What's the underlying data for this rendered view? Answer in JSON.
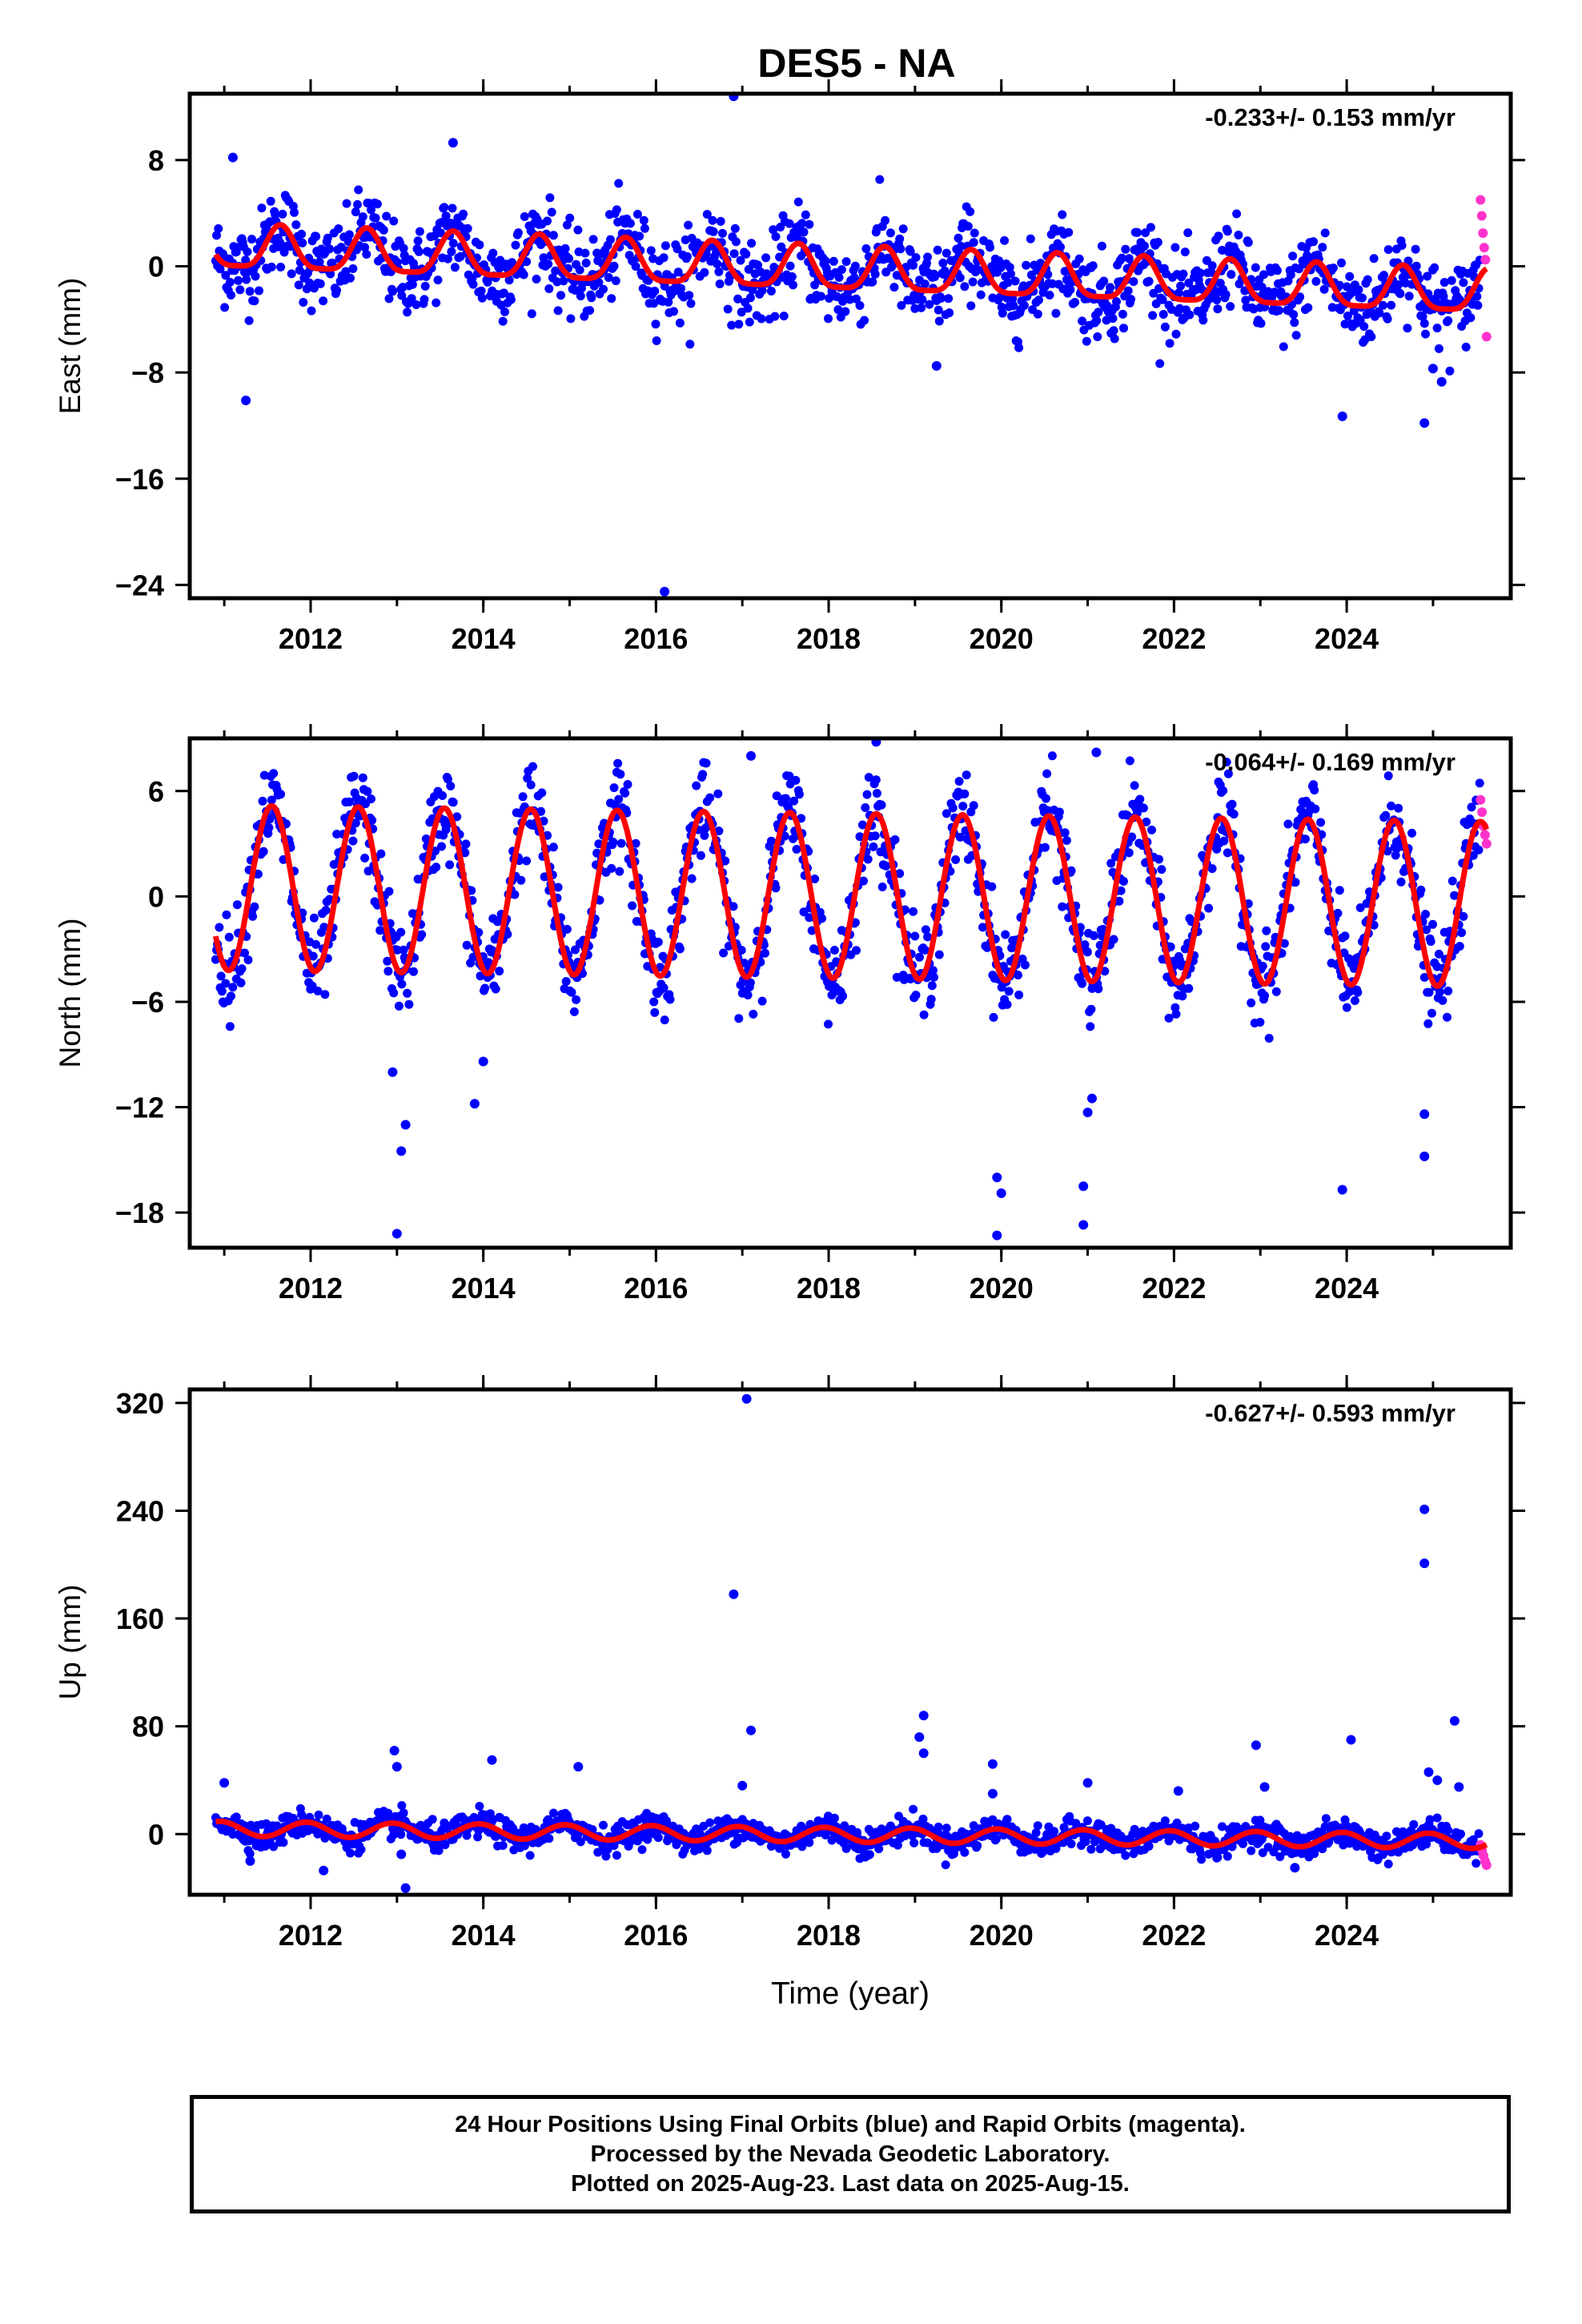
{
  "title": "DES5 - NA",
  "footer": {
    "lines": [
      "24 Hour Positions Using Final Orbits (blue) and Rapid Orbits (magenta).",
      "Processed by the Nevada Geodetic Laboratory.",
      "Plotted on 2025-Aug-23. Last data on 2025-Aug-15."
    ]
  },
  "colors": {
    "final_orbits": "#0000ff",
    "rapid_orbits": "#ff33cc",
    "model": "#ff0000",
    "frame": "#000000"
  },
  "chart_data": [
    {
      "type": "scatter",
      "name": "east",
      "title": "",
      "xlabel": "",
      "ylabel": "East (mm)",
      "xlim": [
        2010.6,
        2025.9
      ],
      "ylim": [
        -25,
        13
      ],
      "xticks": [
        2012,
        2014,
        2016,
        2018,
        2020,
        2022,
        2024
      ],
      "yticks": [
        8,
        0,
        -8,
        -16,
        -24
      ],
      "rate_label": "-0.233+/- 0.153 mm/yr",
      "data_start": 2010.9,
      "data_end": 2025.62,
      "model": {
        "offset": 1.3,
        "trend": -0.233,
        "amplitude": 1.6,
        "phase_peak": 0.65,
        "semi_annual": 0.4
      },
      "scatter_sigma": 1.6,
      "outliers": [
        {
          "x": 2011.25,
          "y": -10.1
        },
        {
          "x": 2011.1,
          "y": 8.2
        },
        {
          "x": 2013.65,
          "y": 9.3
        },
        {
          "x": 2016.1,
          "y": -24.5
        },
        {
          "x": 2016.9,
          "y": 12.8
        },
        {
          "x": 2019.25,
          "y": -7.5
        },
        {
          "x": 2023.95,
          "y": -11.3
        },
        {
          "x": 2024.9,
          "y": -11.8
        },
        {
          "x": 2025.1,
          "y": -8.7
        },
        {
          "x": 2025.0,
          "y": -7.7
        }
      ],
      "rapid": {
        "x_start": 2025.55,
        "x_end": 2025.62,
        "values": [
          5.0,
          3.8,
          2.5,
          1.4,
          0.5,
          -5.3
        ]
      }
    },
    {
      "type": "scatter",
      "name": "north",
      "title": "",
      "xlabel": "",
      "ylabel": "North (mm)",
      "xlim": [
        2010.6,
        2025.9
      ],
      "ylim": [
        -20,
        9
      ],
      "xticks": [
        2012,
        2014,
        2016,
        2018,
        2020,
        2022,
        2024
      ],
      "yticks": [
        6,
        0,
        -6,
        -12,
        -18
      ],
      "rate_label": "-0.064+/- 0.169 mm/yr",
      "data_start": 2010.9,
      "data_end": 2025.62,
      "model": {
        "offset": 0.5,
        "trend": -0.064,
        "amplitude": 4.7,
        "phase_peak": 0.55,
        "semi_annual": 0.0
      },
      "scatter_sigma": 1.3,
      "outliers": [
        {
          "x": 2012.95,
          "y": -10.0
        },
        {
          "x": 2013.05,
          "y": -14.5
        },
        {
          "x": 2013.1,
          "y": -13.0
        },
        {
          "x": 2013.0,
          "y": -19.2
        },
        {
          "x": 2013.9,
          "y": -11.8
        },
        {
          "x": 2014.0,
          "y": -9.4
        },
        {
          "x": 2017.1,
          "y": 8.0
        },
        {
          "x": 2018.55,
          "y": 8.8
        },
        {
          "x": 2019.95,
          "y": -16.0
        },
        {
          "x": 2019.95,
          "y": -19.3
        },
        {
          "x": 2020.0,
          "y": -16.9
        },
        {
          "x": 2020.95,
          "y": -16.5
        },
        {
          "x": 2020.95,
          "y": -18.7
        },
        {
          "x": 2021.0,
          "y": -12.3
        },
        {
          "x": 2021.05,
          "y": -11.5
        },
        {
          "x": 2021.1,
          "y": 8.2
        },
        {
          "x": 2023.95,
          "y": -16.7
        },
        {
          "x": 2024.9,
          "y": -14.8
        },
        {
          "x": 2024.9,
          "y": -12.4
        }
      ],
      "rapid": {
        "x_start": 2025.55,
        "x_end": 2025.62,
        "values": [
          5.5,
          4.8,
          4.0,
          3.5,
          3.0
        ]
      }
    },
    {
      "type": "scatter",
      "name": "up",
      "title": "",
      "xlabel": "Time (year)",
      "ylabel": "Up (mm)",
      "xlim": [
        2010.6,
        2025.9
      ],
      "ylim": [
        -45,
        330
      ],
      "xticks": [
        2012,
        2014,
        2016,
        2018,
        2020,
        2022,
        2024
      ],
      "yticks": [
        320,
        240,
        160,
        80,
        0
      ],
      "rate_label": "-0.627+/- 0.593 mm/yr",
      "data_start": 2010.9,
      "data_end": 2025.62,
      "model": {
        "offset": 4.0,
        "trend": -0.627,
        "amplitude": 5.5,
        "phase_peak": 0.95,
        "semi_annual": 0.0
      },
      "scatter_sigma": 5.0,
      "outliers": [
        {
          "x": 2011.0,
          "y": 38
        },
        {
          "x": 2011.3,
          "y": -20
        },
        {
          "x": 2012.15,
          "y": -27
        },
        {
          "x": 2012.97,
          "y": 62
        },
        {
          "x": 2013.0,
          "y": 50
        },
        {
          "x": 2013.05,
          "y": -15
        },
        {
          "x": 2013.1,
          "y": -40
        },
        {
          "x": 2014.1,
          "y": 55
        },
        {
          "x": 2015.1,
          "y": 50
        },
        {
          "x": 2016.9,
          "y": 178
        },
        {
          "x": 2017.05,
          "y": 323
        },
        {
          "x": 2017.1,
          "y": 77
        },
        {
          "x": 2017.0,
          "y": 36
        },
        {
          "x": 2019.1,
          "y": 88
        },
        {
          "x": 2019.05,
          "y": 72
        },
        {
          "x": 2019.1,
          "y": 60
        },
        {
          "x": 2019.9,
          "y": 52
        },
        {
          "x": 2019.9,
          "y": 30
        },
        {
          "x": 2021.0,
          "y": 38
        },
        {
          "x": 2022.05,
          "y": 32
        },
        {
          "x": 2022.95,
          "y": 66
        },
        {
          "x": 2023.05,
          "y": 35
        },
        {
          "x": 2023.4,
          "y": -25
        },
        {
          "x": 2024.05,
          "y": 70
        },
        {
          "x": 2024.9,
          "y": 241
        },
        {
          "x": 2024.9,
          "y": 201
        },
        {
          "x": 2024.95,
          "y": 46
        },
        {
          "x": 2025.05,
          "y": 40
        },
        {
          "x": 2025.25,
          "y": 84
        },
        {
          "x": 2025.3,
          "y": 35
        }
      ],
      "rapid": {
        "x_start": 2025.55,
        "x_end": 2025.62,
        "values": [
          -8,
          -12,
          -16,
          -20,
          -23
        ]
      }
    }
  ]
}
